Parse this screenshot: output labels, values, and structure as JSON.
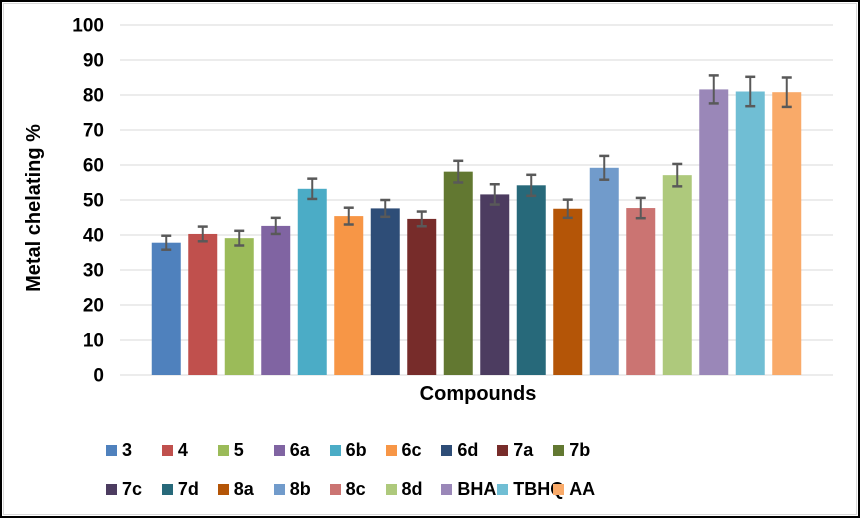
{
  "chart_data": {
    "type": "bar",
    "title": "",
    "xlabel": "Compounds",
    "ylabel": "Metal chelating %",
    "ylim": [
      0,
      100
    ],
    "y_ticks": [
      0,
      10,
      20,
      30,
      40,
      50,
      60,
      70,
      80,
      90,
      100
    ],
    "grid": true,
    "legend_position": "bottom",
    "legend_rows": 2,
    "categories": [
      "3",
      "4",
      "5",
      "6a",
      "6b",
      "6c",
      "6d",
      "7a",
      "7b",
      "7c",
      "7d",
      "8a",
      "8b",
      "8c",
      "8d",
      "BHA",
      "TBHQ",
      "AA"
    ],
    "values": [
      37.8,
      40.3,
      39.1,
      42.6,
      53.2,
      45.4,
      47.6,
      44.6,
      58.1,
      51.6,
      54.2,
      47.5,
      59.2,
      47.7,
      57.1,
      81.6,
      81.0,
      80.8
    ],
    "errors": [
      2.0,
      2.1,
      2.1,
      2.3,
      2.9,
      2.4,
      2.4,
      2.1,
      3.1,
      2.9,
      3.0,
      2.6,
      3.4,
      2.9,
      3.2,
      4.0,
      4.2,
      4.2
    ],
    "bar_colors": [
      "#4F81BD",
      "#C0504D",
      "#9BBB59",
      "#8064A2",
      "#4BACC6",
      "#F79646",
      "#2E4D77",
      "#772C2A",
      "#627831",
      "#4C3C60",
      "#27697A",
      "#B45507",
      "#719BCB",
      "#CB7472",
      "#AEC97C",
      "#9A87B8",
      "#70BED4",
      "#F9AA69"
    ],
    "error_bar_color": "#595959",
    "gridline_color": "#D9D9D9",
    "text_color": "#000000",
    "background_color": "#FFFFFF"
  }
}
